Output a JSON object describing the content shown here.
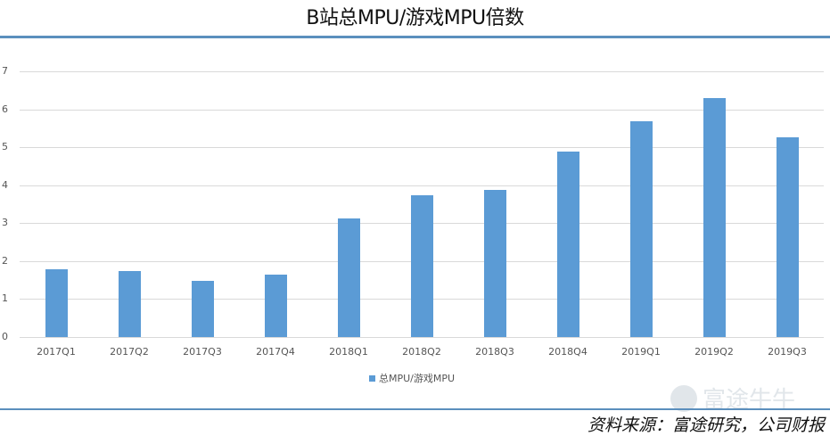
{
  "title": "B站总MPU/游戏MPU倍数",
  "legend": {
    "label": "总MPU/游戏MPU",
    "color": "#5b9bd5"
  },
  "watermark": "富途牛牛",
  "source": "资料来源：富途研究，公司财报",
  "colors": {
    "bar": "#5b9bd5",
    "rule": "#5b8fbd",
    "grid": "#d9d9d9"
  },
  "y_ticks": [
    "0",
    "1",
    "2",
    "3",
    "4",
    "5",
    "6",
    "7"
  ],
  "chart_data": {
    "type": "bar",
    "title": "B站总MPU/游戏MPU倍数",
    "xlabel": "",
    "ylabel": "",
    "categories": [
      "2017Q1",
      "2017Q2",
      "2017Q3",
      "2017Q4",
      "2018Q1",
      "2018Q2",
      "2018Q3",
      "2018Q4",
      "2019Q1",
      "2019Q2",
      "2019Q3"
    ],
    "series": [
      {
        "name": "总MPU/游戏MPU",
        "values": [
          1.79,
          1.74,
          1.48,
          1.64,
          3.12,
          3.73,
          3.87,
          4.88,
          5.68,
          6.29,
          5.26
        ]
      }
    ],
    "ylim": [
      0,
      7
    ],
    "yticks": [
      0,
      1,
      2,
      3,
      4,
      5,
      6,
      7
    ],
    "grid": true,
    "legend_position": "bottom"
  }
}
